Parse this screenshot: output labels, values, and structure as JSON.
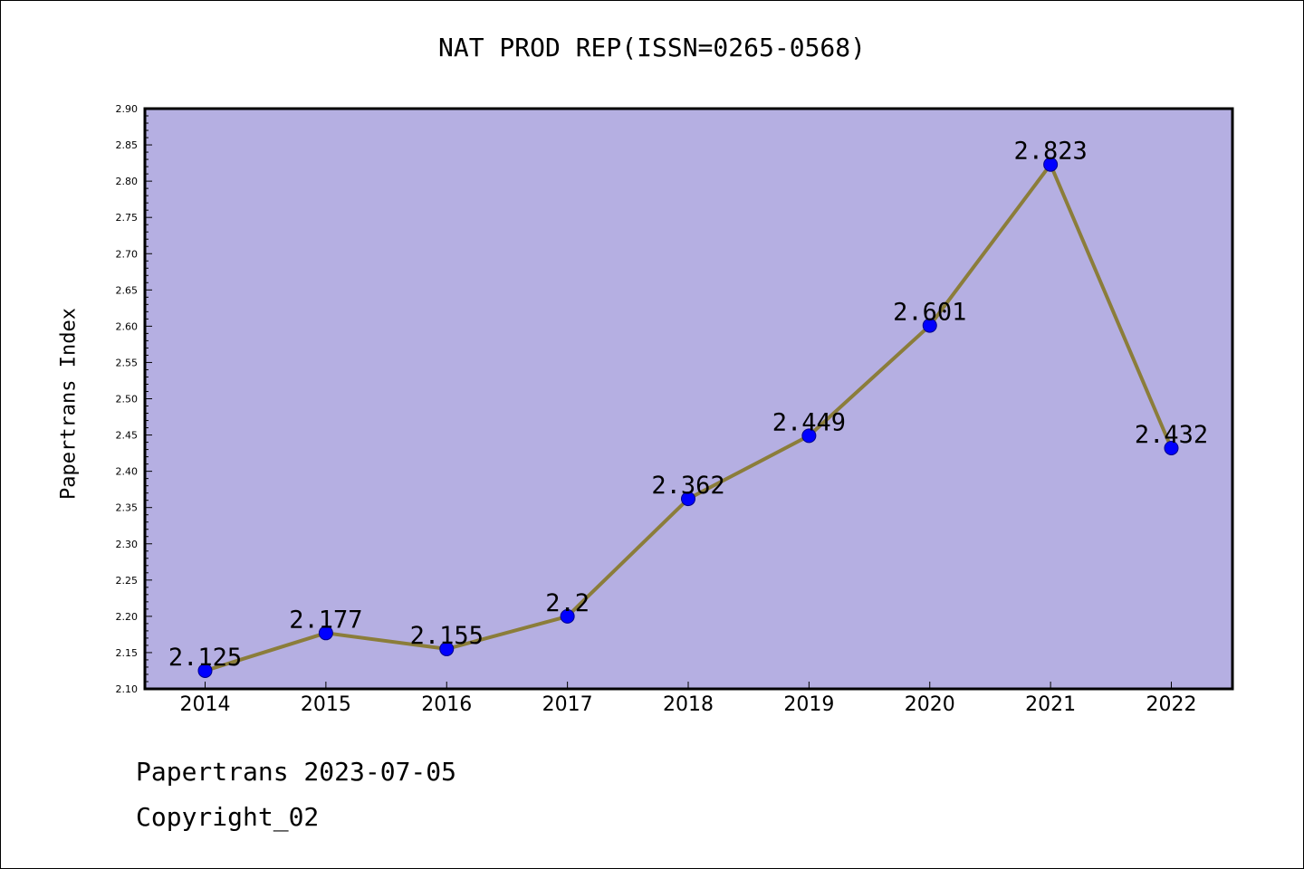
{
  "chart_data": {
    "type": "line",
    "title": "NAT PROD REP(ISSN=0265-0568)",
    "ylabel": "Papertrans Index",
    "xlabel": "",
    "x": [
      "2014",
      "2015",
      "2016",
      "2017",
      "2018",
      "2019",
      "2020",
      "2021",
      "2022"
    ],
    "values": [
      2.125,
      2.177,
      2.155,
      2.2,
      2.362,
      2.449,
      2.601,
      2.823,
      2.432
    ],
    "data_labels": [
      "2.125",
      "2.177",
      "2.155",
      "2.2",
      "2.362",
      "2.449",
      "2.601",
      "2.823",
      "2.432"
    ],
    "ylim": [
      2.1,
      2.9
    ],
    "yticks": [
      "2.10",
      "2.15",
      "2.20",
      "2.25",
      "2.30",
      "2.35",
      "2.40",
      "2.45",
      "2.50",
      "2.55",
      "2.60",
      "2.65",
      "2.70",
      "2.75",
      "2.80",
      "2.85",
      "2.90"
    ],
    "grid": false,
    "legend": "none",
    "colors": {
      "plot_background": "#b5afe2",
      "line": "#8b7d3a",
      "marker": "#0000ff",
      "marker_edge": "#00008b"
    }
  },
  "footer": {
    "source": "Papertrans 2023-07-05",
    "copyright": "Copyright_02"
  }
}
